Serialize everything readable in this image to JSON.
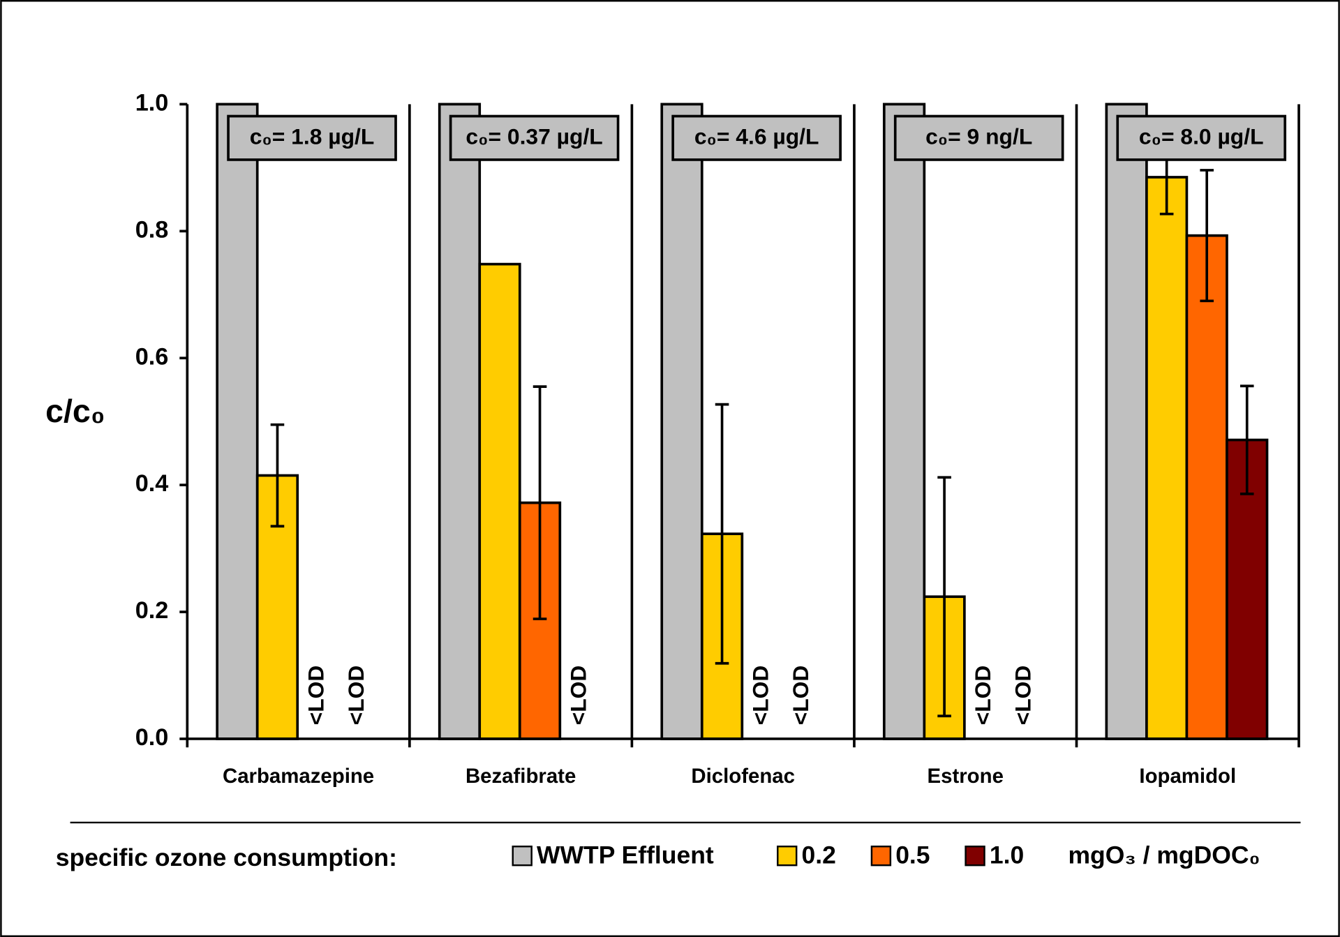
{
  "chart_data": {
    "type": "bar",
    "y_label": "c/c₀",
    "categories": [
      "Carbamazepine",
      "Bezafibrate",
      "Diclofenac",
      "Estrone",
      "Iopamidol"
    ],
    "annotations": [
      "c₀= 1.8 µg/L",
      "c₀= 0.37 µg/L",
      "c₀= 4.6 µg/L",
      "c₀= 9 ng/L",
      "c₀= 8.0 µg/L"
    ],
    "series": [
      {
        "name": "WWTP Effluent",
        "color": "#c0c0c0",
        "values": [
          1,
          1,
          1,
          1,
          1
        ]
      },
      {
        "name": "0.2",
        "color": "#ffcc00",
        "values": [
          0.415,
          0.748,
          0.323,
          0.224,
          0.885
        ],
        "errors": [
          0.08,
          null,
          0.204,
          0.188,
          0.058
        ]
      },
      {
        "name": "0.5",
        "color": "#ff6600",
        "values": [
          0,
          0.372,
          0,
          0,
          0.793
        ],
        "errors": [
          null,
          0.183,
          null,
          null,
          0.103
        ],
        "value_labels": [
          "<LOD",
          null,
          "<LOD",
          "<LOD",
          null
        ]
      },
      {
        "name": "1.0",
        "color": "#800000",
        "values": [
          0,
          0,
          0,
          0,
          0.471
        ],
        "errors": [
          null,
          null,
          null,
          null,
          0.085
        ],
        "value_labels": [
          "<LOD",
          "<LOD",
          "<LOD",
          "<LOD",
          null
        ]
      }
    ],
    "legend_title": "specific ozone consumption:",
    "legend_unit": "mgO₃ / mgDOC₀",
    "ylim": [
      0,
      1
    ],
    "yticks": [
      {
        "value": 0,
        "label": "0.0"
      },
      {
        "value": 0.2,
        "label": "0.2"
      },
      {
        "value": 0.4,
        "label": "0.4"
      },
      {
        "value": 0.6,
        "label": "0.6"
      },
      {
        "value": 0.8,
        "label": "0.8"
      },
      {
        "value": 1,
        "label": "1.0"
      }
    ]
  }
}
